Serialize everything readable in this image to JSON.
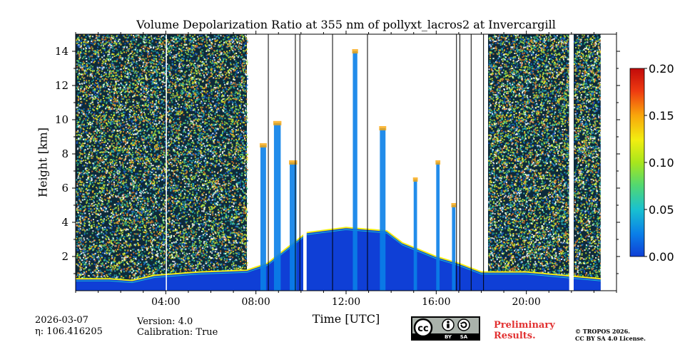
{
  "chart_data": {
    "type": "heatmap",
    "title": "Volume Depolarization Ratio at 355 nm of pollyxt_lacros2 at Invercargill",
    "xlabel": "Time [UTC]",
    "ylabel": "Height [km]",
    "xlim": [
      0,
      24
    ],
    "ylim": [
      0,
      15
    ],
    "x_ticks": [
      4,
      8,
      12,
      16,
      20
    ],
    "x_tick_labels": [
      "04:00",
      "08:00",
      "12:00",
      "16:00",
      "20:00"
    ],
    "y_ticks": [
      2,
      4,
      6,
      8,
      10,
      12,
      14
    ],
    "y_tick_labels": [
      "2",
      "4",
      "6",
      "8",
      "10",
      "12",
      "14"
    ],
    "colorbar": {
      "range": [
        0.0,
        0.2
      ],
      "ticks": [
        0.0,
        0.05,
        0.1,
        0.15,
        0.2
      ],
      "tick_labels": [
        "0.00",
        "0.05",
        "0.10",
        "0.15",
        "0.20"
      ],
      "colors": [
        "#0f3fd6",
        "#0a7fe8",
        "#19c1d0",
        "#53d870",
        "#a8e61c",
        "#f2ee10",
        "#f9a60b",
        "#ee3a10",
        "#c10a0a"
      ]
    },
    "noise_segments": [
      {
        "start": 0.0,
        "end": 7.6
      },
      {
        "start": 18.3,
        "end": 21.9
      },
      {
        "start": 22.1,
        "end": 23.3
      }
    ],
    "data_gaps": [
      {
        "start": 4.0,
        "end": 4.05
      },
      {
        "start": 10.1,
        "end": 10.25
      },
      {
        "start": 21.9,
        "end": 22.1
      },
      {
        "start": 23.3,
        "end": 24.0
      }
    ],
    "vertical_lines": [
      8.55,
      9.75,
      9.95,
      11.4,
      12.95,
      16.9,
      17.05,
      17.55,
      18.1
    ],
    "boundary_layer": [
      {
        "t": 0.0,
        "h": 0.7
      },
      {
        "t": 1.5,
        "h": 0.7
      },
      {
        "t": 2.5,
        "h": 0.6
      },
      {
        "t": 3.5,
        "h": 0.9
      },
      {
        "t": 5.5,
        "h": 1.1
      },
      {
        "t": 7.6,
        "h": 1.2
      },
      {
        "t": 8.5,
        "h": 1.6
      },
      {
        "t": 10.25,
        "h": 3.4
      },
      {
        "t": 12.0,
        "h": 3.7
      },
      {
        "t": 13.8,
        "h": 3.5
      },
      {
        "t": 14.5,
        "h": 2.8
      },
      {
        "t": 16.0,
        "h": 2.0
      },
      {
        "t": 17.0,
        "h": 1.6
      },
      {
        "t": 18.0,
        "h": 1.1
      },
      {
        "t": 20.0,
        "h": 1.1
      },
      {
        "t": 23.3,
        "h": 0.7
      }
    ],
    "cloud_columns": [
      {
        "t": 8.2,
        "w": 0.25,
        "top": 8.5
      },
      {
        "t": 8.8,
        "w": 0.3,
        "top": 9.8
      },
      {
        "t": 9.5,
        "w": 0.3,
        "top": 7.5
      },
      {
        "t": 12.3,
        "w": 0.2,
        "top": 14.0
      },
      {
        "t": 13.5,
        "w": 0.25,
        "top": 9.5
      },
      {
        "t": 15.0,
        "w": 0.15,
        "top": 6.5
      },
      {
        "t": 16.0,
        "w": 0.15,
        "top": 7.5
      },
      {
        "t": 16.7,
        "w": 0.15,
        "top": 5.0
      }
    ]
  },
  "footer": {
    "date": "2026-03-07",
    "eta": "η: 106.416205",
    "version": "Version: 4.0",
    "calibration": "Calibration: True",
    "preliminary_line1": "Preliminary",
    "preliminary_line2": "Results.",
    "copyright_line1": "© TROPOS 2026.",
    "copyright_line2": "CC BY SA 4.0 License.",
    "license_badge": {
      "by": "BY",
      "sa": "SA"
    }
  }
}
